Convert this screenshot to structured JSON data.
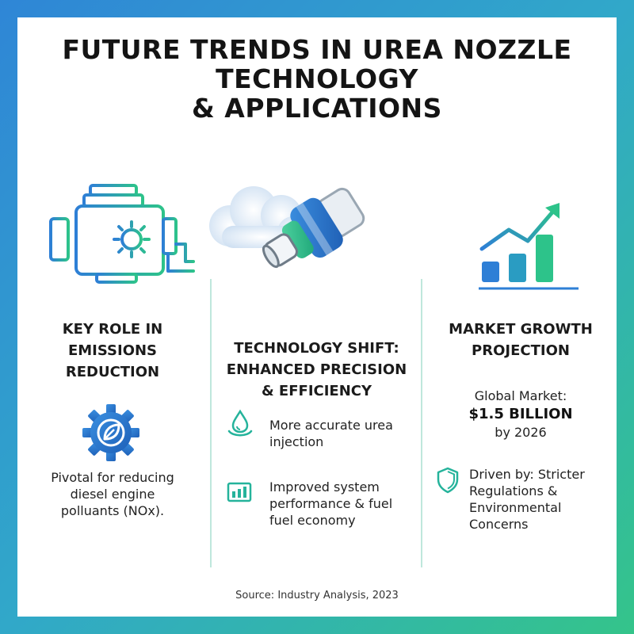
{
  "title": {
    "line1": "FUTURE TRENDS IN UREA NOZZLE",
    "line2": "TECHNOLOGY",
    "line3": "& APPLICATIONS"
  },
  "columns": [
    {
      "heading": [
        "KEY ROLE IN",
        "EMISSIONS",
        "REDUCTION"
      ],
      "body": [
        "Pivotal for reducing",
        "diesel engine",
        "polluants (NOx)."
      ],
      "icons": [
        "engine-icon",
        "gear-leaf-icon"
      ]
    },
    {
      "heading": [
        "TECHNOLOGY SHIFT:",
        "ENHANCED PRECISION",
        "& EFFICIENCY"
      ],
      "points": [
        {
          "icon": "water-drop-icon",
          "lines": [
            "More accurate urea",
            "injection"
          ]
        },
        {
          "icon": "bar-meter-icon",
          "lines": [
            "Improved system",
            "performance & fuel",
            "fuel economy"
          ]
        }
      ],
      "icons": [
        "nozzle-icon",
        "cloud-icon"
      ]
    },
    {
      "heading": [
        "MARKET GROWTH",
        "PROJECTION"
      ],
      "market_label": "Global Market:",
      "market_value": "$1.5 BILLION",
      "market_year": "by 2026",
      "driver_lines": [
        "Driven by: Stricter",
        "Regulations &",
        "Environmental",
        "Concerns"
      ],
      "icons": [
        "growth-chart-icon",
        "shield-icon"
      ]
    }
  ],
  "source": "Source: Industry Analysis, 2023",
  "colors": {
    "blue": "#2e7fd6",
    "teal": "#25b39b",
    "green": "#2dc38a"
  }
}
